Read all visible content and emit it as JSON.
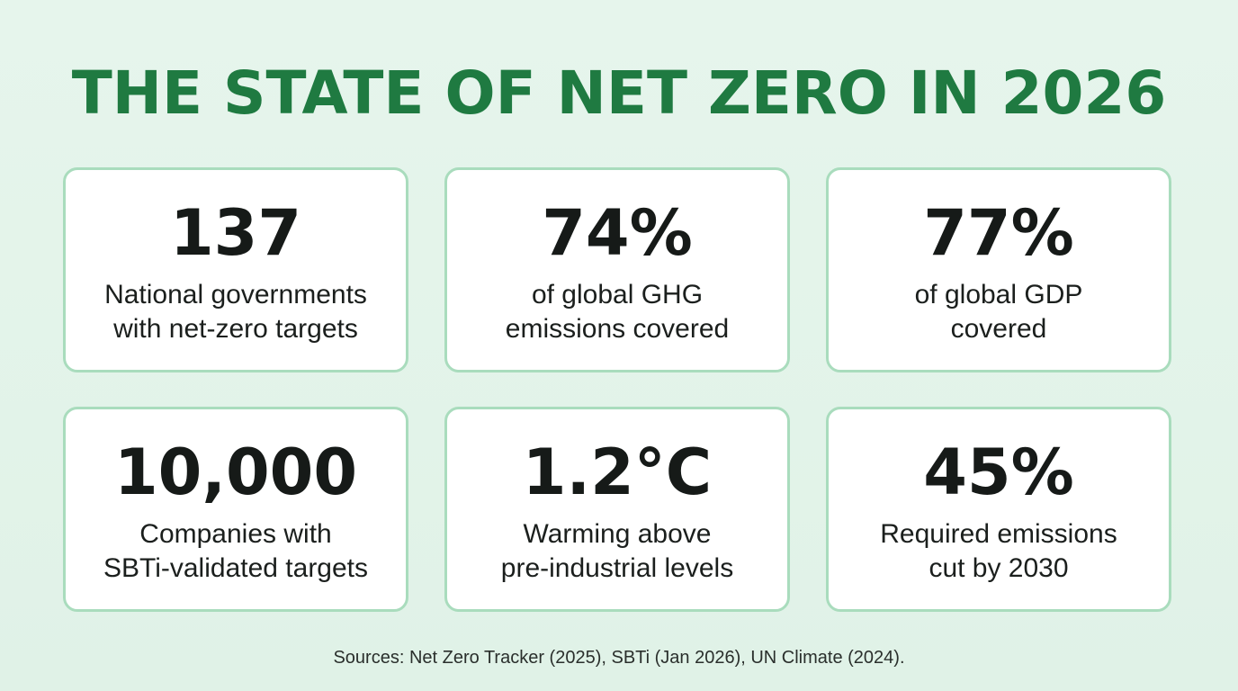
{
  "title": "THE STATE OF NET ZERO IN 2026",
  "stats": [
    {
      "value": "137",
      "desc_line1": "National governments",
      "desc_line2": "with net-zero targets"
    },
    {
      "value": "74%",
      "desc_line1": "of global GHG",
      "desc_line2": "emissions covered"
    },
    {
      "value": "77%",
      "desc_line1": "of global GDP",
      "desc_line2": "covered"
    },
    {
      "value": "10,000",
      "desc_line1": "Companies with",
      "desc_line2": "SBTi-validated targets"
    },
    {
      "value": "1.2°C",
      "desc_line1": "Warming above",
      "desc_line2": "pre-industrial levels"
    },
    {
      "value": "45%",
      "desc_line1": "Required emissions",
      "desc_line2": "cut by 2030"
    }
  ],
  "sources": "Sources: Net Zero Tracker (2025), SBTi (Jan 2026), UN Climate (2024).",
  "colors": {
    "background": "#e3f3e9",
    "title": "#1f7a41",
    "card_border": "#a9dcbd",
    "card_background": "#ffffff",
    "value_text": "#161a18"
  }
}
